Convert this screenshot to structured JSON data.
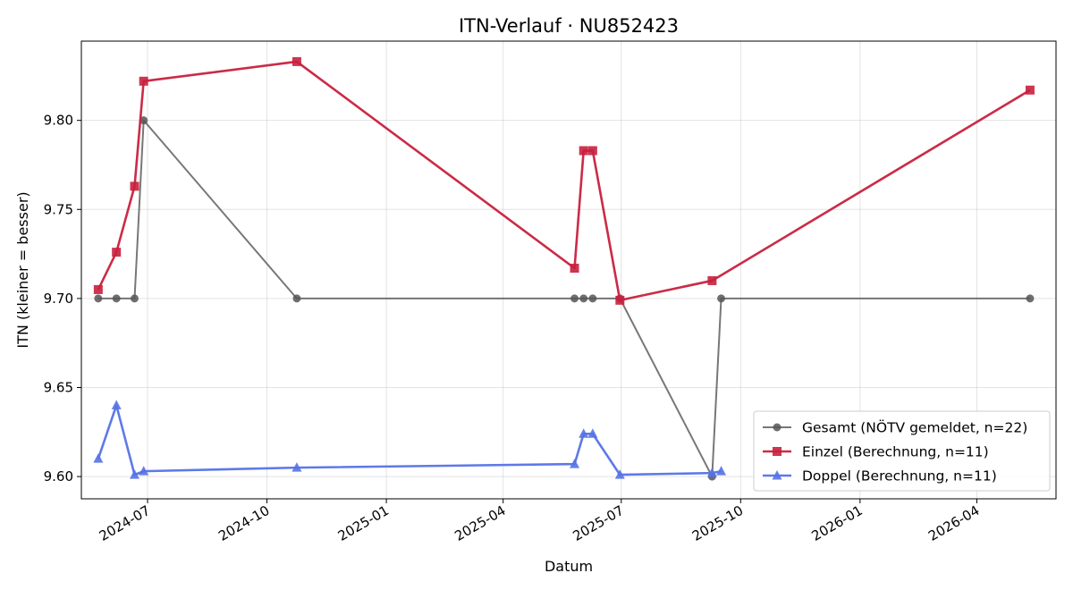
{
  "chart_data": {
    "type": "line",
    "title": "ITN-Verlauf · NU852423",
    "xlabel": "Datum",
    "ylabel": "ITN  (kleiner = besser)",
    "xlim": [
      "2024-05-11",
      "2026-06-01"
    ],
    "ylim": [
      9.5875,
      9.8445
    ],
    "grid": true,
    "legend_position": "lower-right",
    "x_ticks": [
      "2024-07-01",
      "2024-10-01",
      "2025-01-01",
      "2025-04-01",
      "2025-07-01",
      "2025-10-01",
      "2026-01-01",
      "2026-04-01"
    ],
    "x_tick_labels": [
      "2024-07",
      "2024-10",
      "2025-01",
      "2025-04",
      "2025-07",
      "2025-10",
      "2026-01",
      "2026-04"
    ],
    "y_ticks": [
      9.6,
      9.65,
      9.7,
      9.75,
      9.8
    ],
    "y_tick_labels": [
      "9.60",
      "9.65",
      "9.70",
      "9.75",
      "9.80"
    ],
    "series": [
      {
        "name": "Gesamt (NÖTV gemeldet, n=22)",
        "color": "#555555",
        "marker": "circle",
        "points": [
          {
            "x": "2024-05-24",
            "y": 9.7
          },
          {
            "x": "2024-06-07",
            "y": 9.7
          },
          {
            "x": "2024-06-21",
            "y": 9.7
          },
          {
            "x": "2024-06-28",
            "y": 9.8
          },
          {
            "x": "2024-10-24",
            "y": 9.7
          },
          {
            "x": "2025-05-26",
            "y": 9.7
          },
          {
            "x": "2025-06-02",
            "y": 9.7
          },
          {
            "x": "2025-06-09",
            "y": 9.7
          },
          {
            "x": "2025-06-30",
            "y": 9.7
          },
          {
            "x": "2025-09-09",
            "y": 9.6
          },
          {
            "x": "2025-09-16",
            "y": 9.7
          },
          {
            "x": "2026-05-12",
            "y": 9.7
          }
        ]
      },
      {
        "name": "Einzel (Berechnung, n=11)",
        "color": "#c8203d",
        "marker": "square",
        "points": [
          {
            "x": "2024-05-24",
            "y": 9.705
          },
          {
            "x": "2024-06-07",
            "y": 9.726
          },
          {
            "x": "2024-06-21",
            "y": 9.763
          },
          {
            "x": "2024-06-28",
            "y": 9.822
          },
          {
            "x": "2024-10-24",
            "y": 9.833
          },
          {
            "x": "2025-05-26",
            "y": 9.717
          },
          {
            "x": "2025-06-02",
            "y": 9.783
          },
          {
            "x": "2025-06-09",
            "y": 9.783
          },
          {
            "x": "2025-06-30",
            "y": 9.699
          },
          {
            "x": "2025-09-09",
            "y": 9.71
          },
          {
            "x": "2026-05-12",
            "y": 9.817
          }
        ]
      },
      {
        "name": "Doppel (Berechnung, n=11)",
        "color": "#5572e6",
        "marker": "triangle",
        "points": [
          {
            "x": "2024-05-24",
            "y": 9.61
          },
          {
            "x": "2024-06-07",
            "y": 9.64
          },
          {
            "x": "2024-06-21",
            "y": 9.601
          },
          {
            "x": "2024-06-28",
            "y": 9.603
          },
          {
            "x": "2024-10-24",
            "y": 9.605
          },
          {
            "x": "2025-05-26",
            "y": 9.607
          },
          {
            "x": "2025-06-02",
            "y": 9.624
          },
          {
            "x": "2025-06-09",
            "y": 9.624
          },
          {
            "x": "2025-06-30",
            "y": 9.601
          },
          {
            "x": "2025-09-09",
            "y": 9.602
          },
          {
            "x": "2025-09-16",
            "y": 9.603
          }
        ]
      }
    ]
  }
}
